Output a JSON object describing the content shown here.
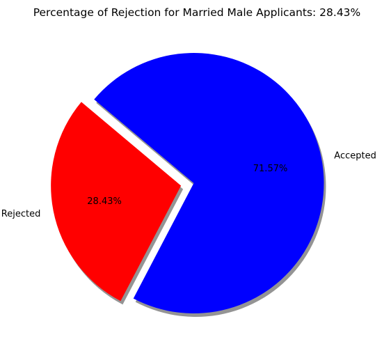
{
  "chart_data": {
    "type": "pie",
    "title": "Percentage of Rejection for Married Male Applicants: 28.43%",
    "slices": [
      {
        "label": "Rejected",
        "value": 28.43,
        "percent_label": "28.43%",
        "color": "#ff0000",
        "exploded": true
      },
      {
        "label": "Accepted",
        "value": 71.57,
        "percent_label": "71.57%",
        "color": "#0000ff",
        "exploded": false
      }
    ],
    "start_angle_deg": 140,
    "shadow": true,
    "legend": "none"
  }
}
